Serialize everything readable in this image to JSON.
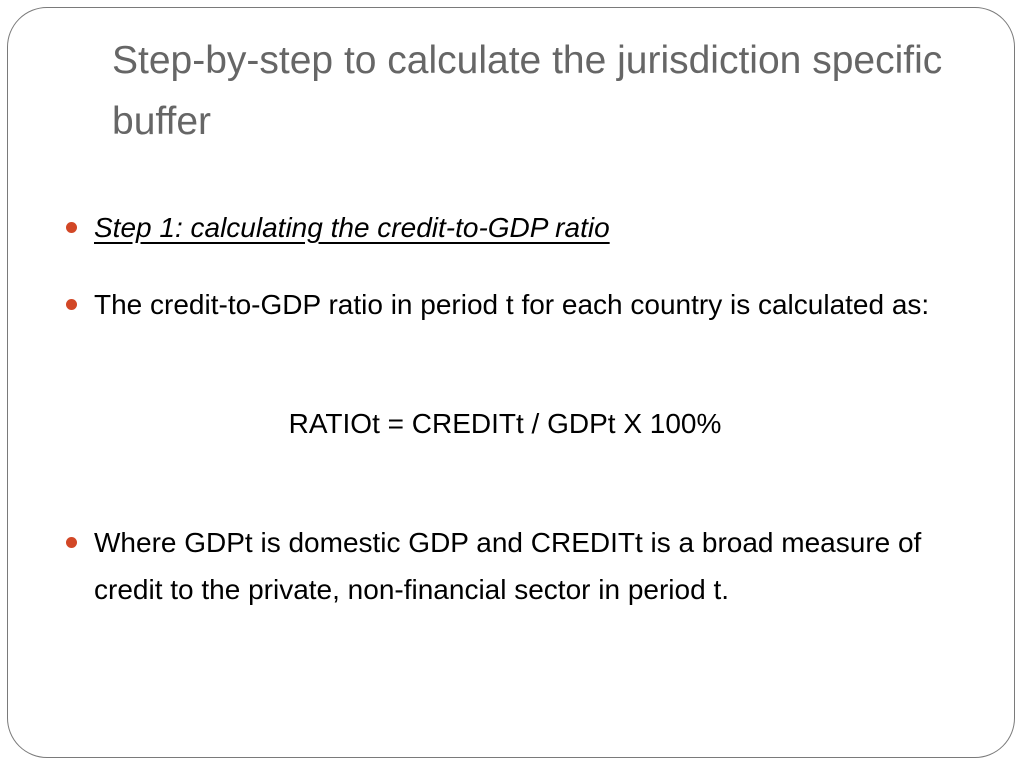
{
  "slide": {
    "title": "Step-by-step to calculate the jurisdiction specific buffer",
    "bullets": [
      "Step 1: calculating the credit-to-GDP ratio",
      "The credit-to-GDP ratio in period t for each country is calculated as:",
      "Where GDPt is domestic GDP and CREDITt is a broad measure of credit to the private, non-financial sector in period t."
    ],
    "formula": "RATIOt = CREDITt / GDPt X 100%",
    "bullet_color": "#d24726"
  }
}
